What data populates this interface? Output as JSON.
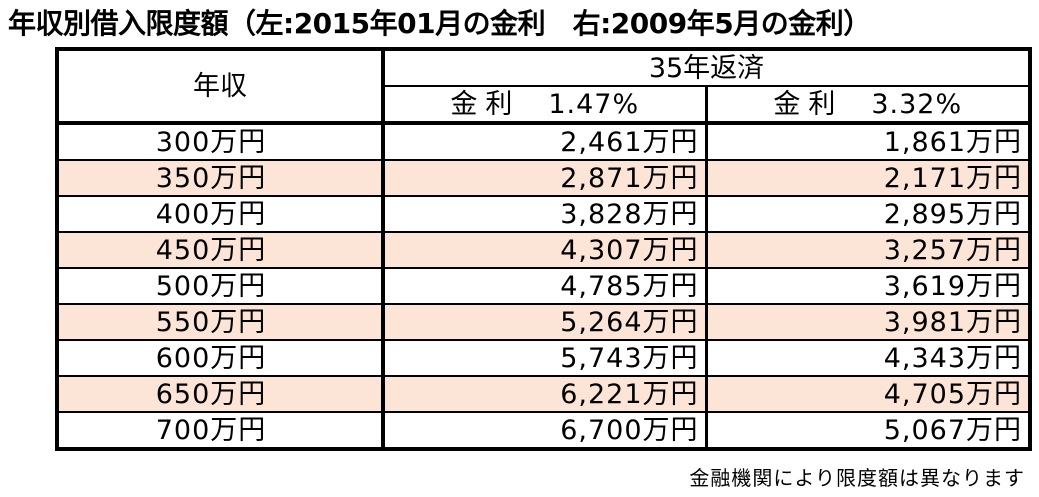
{
  "title": "年収別借入限度額（左:2015年01月の金利　右:2009年5月の金利）",
  "table": {
    "income_header": "年収",
    "term_header": "35年返済",
    "rate_headers": [
      {
        "label": "金利",
        "value": "1.47%"
      },
      {
        "label": "金利",
        "value": "3.32%"
      }
    ],
    "rows": [
      {
        "income": "300万円",
        "amount_2015": "2,461万円",
        "amount_2009": "1,861万円",
        "shaded": false
      },
      {
        "income": "350万円",
        "amount_2015": "2,871万円",
        "amount_2009": "2,171万円",
        "shaded": true
      },
      {
        "income": "400万円",
        "amount_2015": "3,828万円",
        "amount_2009": "2,895万円",
        "shaded": false
      },
      {
        "income": "450万円",
        "amount_2015": "4,307万円",
        "amount_2009": "3,257万円",
        "shaded": true
      },
      {
        "income": "500万円",
        "amount_2015": "4,785万円",
        "amount_2009": "3,619万円",
        "shaded": false
      },
      {
        "income": "550万円",
        "amount_2015": "5,264万円",
        "amount_2009": "3,981万円",
        "shaded": true
      },
      {
        "income": "600万円",
        "amount_2015": "5,743万円",
        "amount_2009": "4,343万円",
        "shaded": false
      },
      {
        "income": "650万円",
        "amount_2015": "6,221万円",
        "amount_2009": "4,705万円",
        "shaded": true
      },
      {
        "income": "700万円",
        "amount_2015": "6,700万円",
        "amount_2009": "5,067万円",
        "shaded": false
      }
    ]
  },
  "footnote": "金融機関により限度額は異なります",
  "colors": {
    "row_shade": "#fce4d6",
    "border": "#000000"
  }
}
